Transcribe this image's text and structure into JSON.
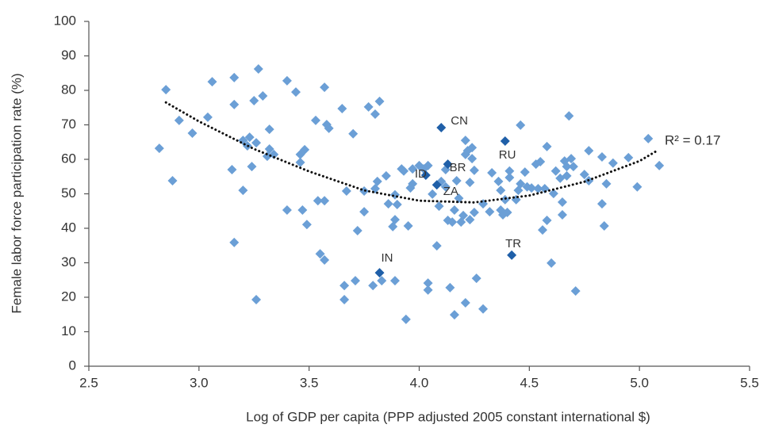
{
  "chart_data": {
    "type": "scatter",
    "xlabel": "Log of GDP per capita (PPP adjusted 2005 constant international $)",
    "ylabel": "Female labor force participation rate (%)",
    "xlim": [
      2.5,
      5.5
    ],
    "xticks": [
      2.5,
      {
        "value": 3,
        "label": "3.0"
      },
      3.5,
      {
        "value": 4,
        "label": "4.0"
      },
      4.5,
      {
        "value": 5,
        "label": "5.0"
      },
      5.5
    ],
    "ylim": [
      0,
      100
    ],
    "yticks": [
      0,
      10,
      20,
      30,
      40,
      50,
      60,
      70,
      80,
      90,
      100
    ],
    "grid": false,
    "series": [
      {
        "color": "#6b9fd6",
        "x": [
          2.85,
          2.82,
          2.88,
          2.91,
          2.97,
          3.04,
          3.06,
          3.16,
          3.16,
          3.15,
          3.16,
          3.2,
          3.2,
          3.22,
          3.23,
          3.24,
          3.25,
          3.26,
          3.27,
          3.29,
          3.26,
          3.32,
          3.32,
          3.34,
          3.31,
          3.4,
          3.44,
          3.4,
          3.46,
          3.48,
          3.46,
          3.47,
          3.49,
          3.53,
          3.54,
          3.57,
          3.57,
          3.58,
          3.59,
          3.55,
          3.57,
          3.65,
          3.7,
          3.67,
          3.66,
          3.66,
          3.71,
          3.72,
          3.75,
          3.75,
          3.77,
          3.8,
          3.82,
          3.79,
          3.8,
          3.81,
          3.83,
          3.85,
          3.86,
          3.88,
          3.89,
          3.89,
          3.89,
          3.9,
          3.92,
          3.93,
          3.94,
          3.95,
          3.96,
          3.97,
          3.97,
          4.0,
          4.02,
          4.04,
          4.06,
          4.04,
          4.04,
          4.08,
          4.09,
          4.1,
          4.12,
          4.12,
          4.13,
          4.14,
          4.15,
          4.16,
          4.16,
          4.17,
          4.18,
          4.19,
          4.2,
          4.21,
          4.21,
          4.21,
          4.22,
          4.24,
          4.24,
          4.25,
          4.23,
          4.25,
          4.23,
          4.26,
          4.29,
          4.29,
          4.33,
          4.32,
          4.36,
          4.37,
          4.37,
          4.38,
          4.39,
          4.4,
          4.41,
          4.41,
          4.44,
          4.45,
          4.46,
          4.46,
          4.48,
          4.49,
          4.51,
          4.53,
          4.54,
          4.55,
          4.56,
          4.57,
          4.58,
          4.58,
          4.6,
          4.61,
          4.62,
          4.64,
          4.65,
          4.65,
          4.66,
          4.67,
          4.67,
          4.68,
          4.69,
          4.7,
          4.71,
          4.75,
          4.77,
          4.77,
          4.83,
          4.83,
          4.85,
          4.84,
          4.88,
          4.95,
          4.99,
          5.04,
          5.09
        ],
        "values": [
          80.2,
          63.2,
          53.8,
          71.3,
          67.6,
          72.2,
          82.5,
          83.7,
          75.9,
          57.0,
          35.9,
          65.5,
          51.0,
          63.9,
          66.4,
          57.9,
          77.0,
          64.8,
          86.2,
          78.4,
          19.3,
          68.7,
          63.0,
          61.4,
          60.9,
          82.8,
          79.5,
          45.3,
          61.4,
          62.8,
          59.1,
          45.3,
          41.1,
          71.3,
          48.0,
          48.0,
          80.9,
          70.1,
          69.0,
          32.6,
          30.8,
          74.7,
          67.4,
          50.8,
          23.4,
          19.3,
          24.8,
          39.3,
          44.8,
          50.8,
          75.2,
          73.1,
          76.8,
          23.4,
          51.5,
          53.6,
          24.8,
          55.2,
          47.1,
          40.5,
          49.7,
          24.8,
          42.5,
          46.9,
          57.2,
          56.6,
          13.6,
          40.7,
          51.7,
          57.2,
          52.9,
          58.2,
          57.2,
          58.2,
          49.9,
          24.1,
          22.1,
          34.9,
          46.4,
          53.6,
          57.0,
          52.0,
          42.3,
          22.8,
          41.8,
          14.9,
          45.3,
          53.8,
          48.7,
          41.8,
          43.7,
          18.4,
          65.5,
          61.4,
          62.5,
          60.2,
          63.4,
          56.8,
          53.3,
          44.6,
          42.5,
          25.5,
          16.6,
          47.1,
          56.1,
          44.8,
          53.6,
          45.3,
          51.0,
          43.9,
          48.3,
          44.6,
          56.6,
          54.7,
          48.3,
          51.0,
          69.9,
          52.9,
          56.3,
          52.0,
          51.7,
          58.6,
          51.5,
          59.3,
          39.5,
          51.5,
          63.7,
          42.3,
          29.9,
          50.1,
          56.6,
          54.5,
          47.6,
          43.9,
          59.5,
          57.9,
          55.2,
          72.6,
          60.2,
          57.9,
          21.8,
          55.6,
          62.5,
          53.8,
          60.7,
          47.1,
          52.9,
          40.7,
          58.9,
          60.5,
          52.0,
          66.0,
          58.2
        ]
      },
      {
        "color": "#1f5fa8",
        "labels": [
          "CN",
          "RU",
          "ID",
          "BR",
          "ZA",
          "IN",
          "TR"
        ],
        "x": [
          4.1,
          4.39,
          4.03,
          4.13,
          4.08,
          3.82,
          4.42
        ],
        "values": [
          69.2,
          65.3,
          55.4,
          58.6,
          52.6,
          27.1,
          32.2
        ]
      }
    ],
    "trend": {
      "color": "#111111",
      "x": [
        2.85,
        3.0,
        3.25,
        3.5,
        3.75,
        4.0,
        4.25,
        4.5,
        4.75,
        5.0,
        5.08
      ],
      "values": [
        76.5,
        71,
        63,
        56.5,
        51,
        48,
        47.5,
        49.5,
        53.5,
        59.5,
        62.5
      ]
    },
    "annotation": "R² = 0.17"
  }
}
